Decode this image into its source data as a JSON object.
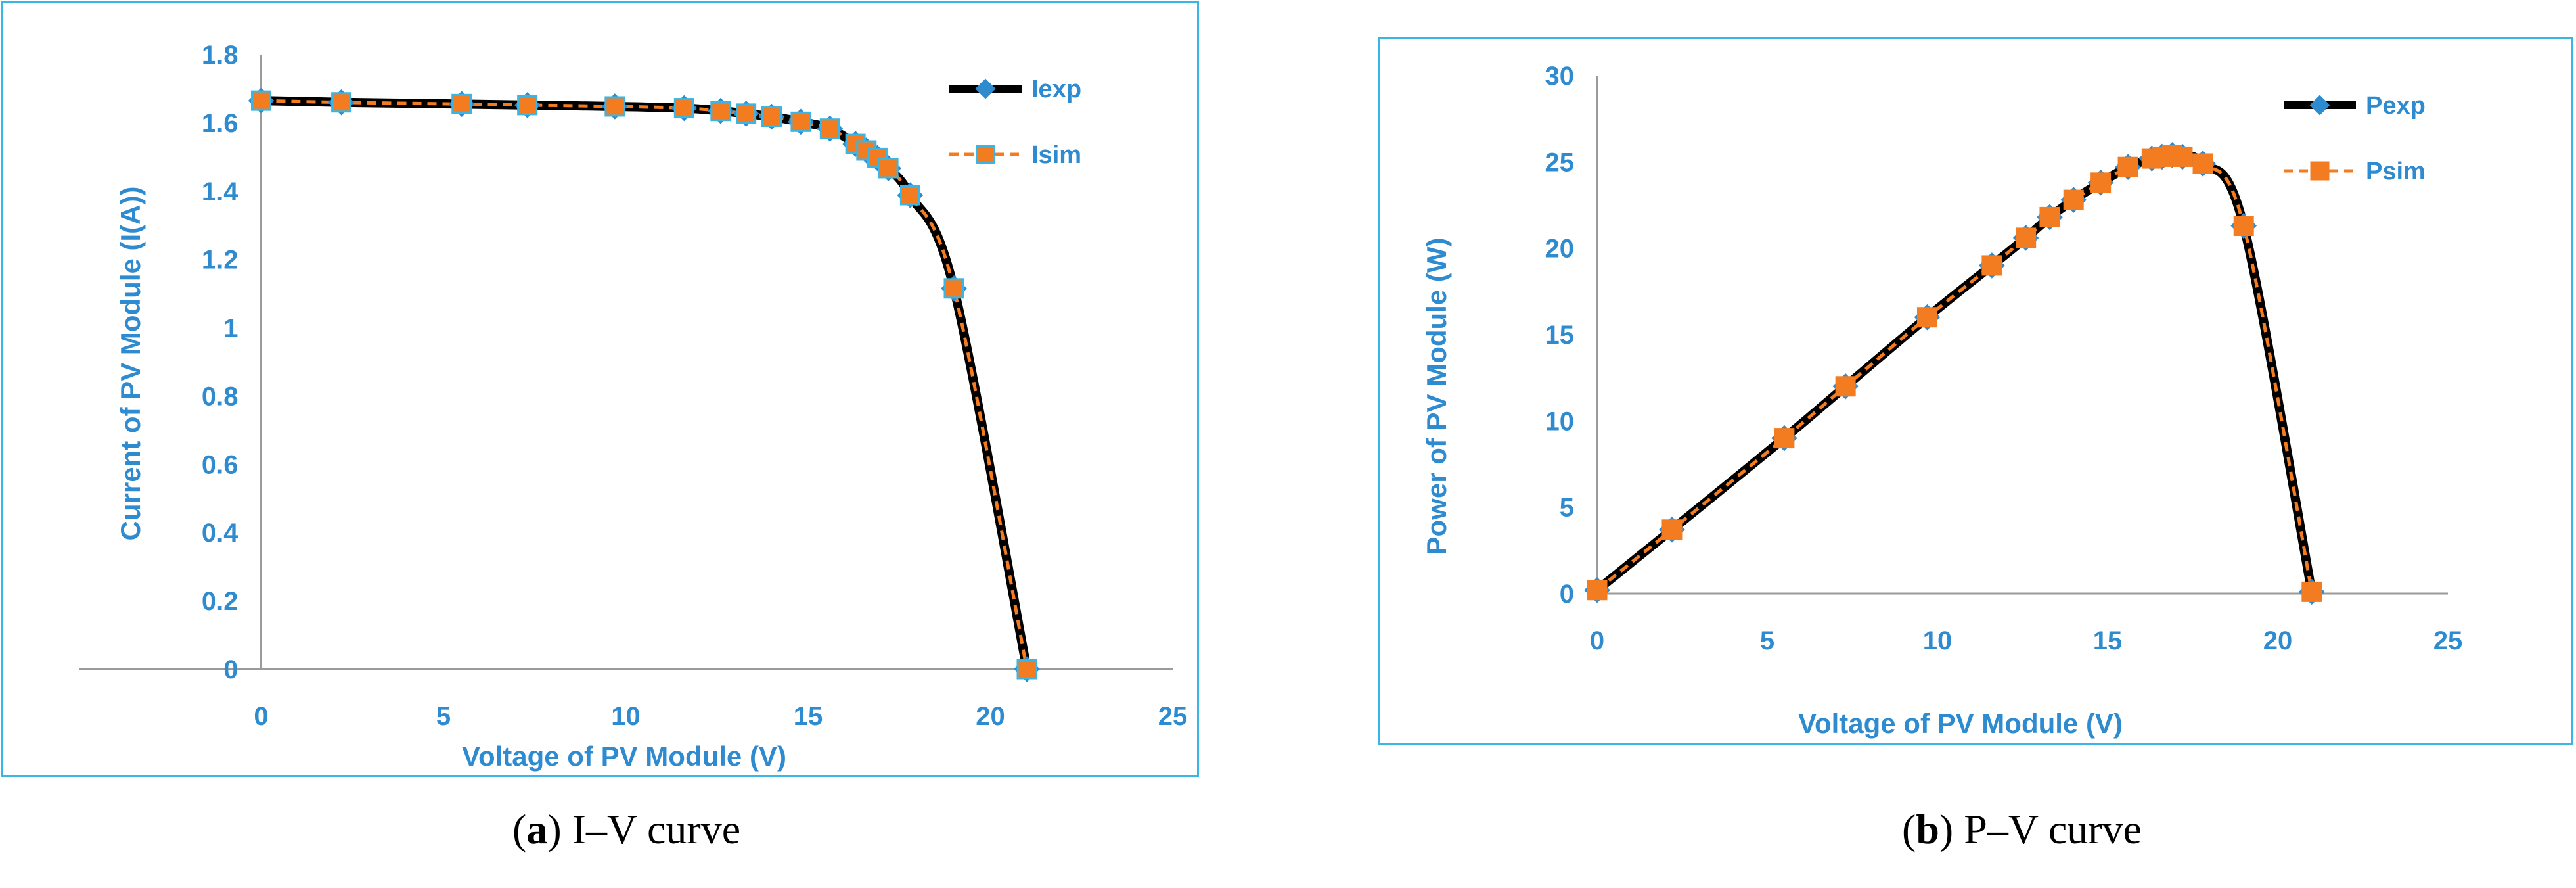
{
  "colors": {
    "exp_line": "#000000",
    "sim_line": "#f47c20",
    "marker_fill": "#f47c20",
    "exp_marker": "#2e8bd0",
    "marker_edge": "#39b6e6",
    "axis": "#9a9a9a",
    "text": "#2e8bd0",
    "border": "#39b6e6"
  },
  "chart_data": [
    {
      "type": "line",
      "xlabel": "Voltage of PV Module (V)",
      "ylabel": "Current of PV Module (I(A))",
      "xlim": [
        -5,
        25
      ],
      "ylim": [
        0,
        1.8
      ],
      "xticks": [
        "0",
        "5",
        "10",
        "15",
        "20",
        "25"
      ],
      "yticks": [
        "0",
        "0.2",
        "0.4",
        "0.6",
        "0.8",
        "1",
        "1.2",
        "1.4",
        "1.6",
        "1.8"
      ],
      "grid": false,
      "legend_position": "top-right",
      "x": [
        0,
        2.2,
        5.5,
        7.3,
        9.7,
        11.6,
        12.6,
        13.3,
        14.0,
        14.8,
        15.6,
        16.3,
        16.6,
        16.9,
        17.2,
        17.8,
        19.0,
        21.0
      ],
      "series": [
        {
          "name": "Iexp",
          "style": "solid",
          "marker": "diamond",
          "values": [
            1.665,
            1.66,
            1.655,
            1.652,
            1.648,
            1.643,
            1.635,
            1.627,
            1.618,
            1.603,
            1.583,
            1.538,
            1.519,
            1.497,
            1.467,
            1.388,
            1.115,
            0.0
          ]
        },
        {
          "name": "Isim",
          "style": "dashed",
          "marker": "square",
          "values": [
            1.665,
            1.66,
            1.655,
            1.652,
            1.648,
            1.643,
            1.635,
            1.627,
            1.618,
            1.603,
            1.583,
            1.538,
            1.519,
            1.497,
            1.467,
            1.388,
            1.115,
            0.0
          ]
        }
      ]
    },
    {
      "type": "line",
      "xlabel": "Voltage of PV Module (V)",
      "ylabel": "Power of PV Module (W)",
      "xlim": [
        0,
        25
      ],
      "ylim": [
        0,
        30
      ],
      "xticks": [
        "0",
        "5",
        "10",
        "15",
        "20",
        "25"
      ],
      "yticks": [
        "0",
        "5",
        "10",
        "15",
        "20",
        "25",
        "30"
      ],
      "grid": false,
      "legend_position": "top-right",
      "x": [
        0,
        2.2,
        5.5,
        7.3,
        9.7,
        11.6,
        12.6,
        13.3,
        14.0,
        14.8,
        15.6,
        16.3,
        16.6,
        16.9,
        17.2,
        17.8,
        19.0,
        21.0
      ],
      "series": [
        {
          "name": "Pexp",
          "style": "solid",
          "marker": "diamond",
          "values": [
            0.2,
            3.7,
            9.0,
            12.0,
            16.0,
            19.0,
            20.6,
            21.8,
            22.8,
            23.8,
            24.7,
            25.2,
            25.3,
            25.4,
            25.3,
            24.9,
            21.3,
            0.1
          ]
        },
        {
          "name": "Psim",
          "style": "dashed",
          "marker": "square",
          "values": [
            0.2,
            3.7,
            9.0,
            12.0,
            16.0,
            19.0,
            20.6,
            21.8,
            22.8,
            23.8,
            24.7,
            25.2,
            25.3,
            25.4,
            25.3,
            24.9,
            21.3,
            0.1
          ]
        }
      ]
    }
  ],
  "captions": {
    "a_letter": "a",
    "a_text": " I–V curve",
    "b_letter": "b",
    "b_text": " P–V curve"
  }
}
